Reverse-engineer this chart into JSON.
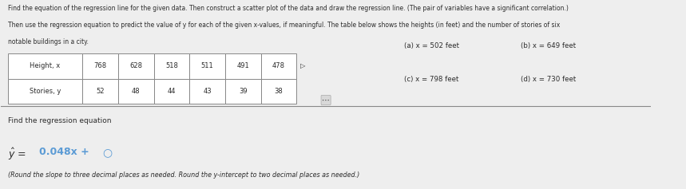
{
  "title_line1": "Find the equation of the regression line for the given data. Then construct a scatter plot of the data and draw the regression line. (The pair of variables have a significant correlation.)",
  "title_line2": "Then use the regression equation to predict the value of y for each of the given x-values, if meaningful. The table below shows the heights (in feet) and the number of stories of six",
  "title_line3": "notable buildings in a city.",
  "table_headers": [
    "Height, x",
    "768",
    "628",
    "518",
    "511",
    "491",
    "478"
  ],
  "table_row2": [
    "Stories, y",
    "52",
    "48",
    "44",
    "43",
    "39",
    "38"
  ],
  "x_values_label_a": "(a) x = 502 feet",
  "x_values_label_b": "(b) x = 649 feet",
  "x_values_label_c": "(c) x = 798 feet",
  "x_values_label_d": "(d) x = 730 feet",
  "find_regression": "Find the regression equation",
  "equation_note": "(Round the slope to three decimal places as needed. Round the y-intercept to two decimal places as needed.)",
  "bg_color": "#eeeeee",
  "text_color": "#2c2c2c",
  "highlight_color": "#5b9bd5",
  "table_border_color": "#888888"
}
